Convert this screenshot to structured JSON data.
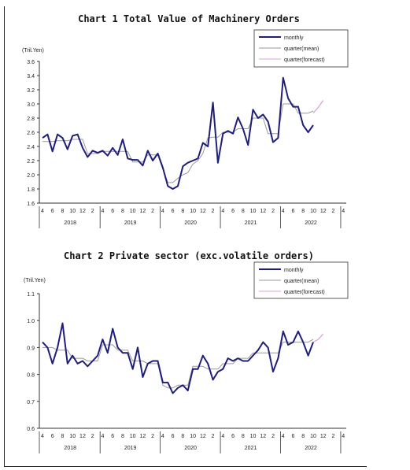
{
  "chart_data": [
    {
      "type": "line",
      "title": "Chart 1 Total Value of Machinery Orders",
      "ylabel": "(Tril.Yen)",
      "xlabel": "",
      "ylim": [
        1.6,
        3.6
      ],
      "yticks": [
        "1.6",
        "1.8",
        "2.0",
        "2.2",
        "2.4",
        "2.6",
        "2.8",
        "3.0",
        "3.2",
        "3.4",
        "3.6"
      ],
      "x_month_labels": [
        "4",
        "6",
        "8",
        "10",
        "12",
        "2"
      ],
      "years": [
        "2018",
        "2019",
        "2020",
        "2021",
        "2022"
      ],
      "legend_position": "top-right",
      "grid": false,
      "series": [
        {
          "name": "monthly",
          "color": "#1f1f7a",
          "start": "2018-04",
          "values": [
            2.52,
            2.57,
            2.33,
            2.57,
            2.52,
            2.36,
            2.55,
            2.57,
            2.38,
            2.25,
            2.34,
            2.31,
            2.34,
            2.27,
            2.38,
            2.28,
            2.5,
            2.23,
            2.21,
            2.21,
            2.13,
            2.34,
            2.2,
            2.3,
            2.1,
            1.84,
            1.8,
            1.84,
            2.12,
            2.17,
            2.2,
            2.23,
            2.45,
            2.4,
            3.02,
            2.17,
            2.58,
            2.62,
            2.58,
            2.81,
            2.65,
            2.42,
            2.92,
            2.8,
            2.85,
            2.75,
            2.46,
            2.52,
            3.37,
            3.08,
            2.96,
            2.96,
            2.7,
            2.6,
            2.7
          ]
        },
        {
          "name": "quarter(mean)",
          "color": "#999999",
          "start": "2018-04",
          "values": [
            2.47,
            2.47,
            2.47,
            2.48,
            2.48,
            2.48,
            2.5,
            2.5,
            2.5,
            2.3,
            2.3,
            2.3,
            2.33,
            2.33,
            2.33,
            2.33,
            2.33,
            2.33,
            2.18,
            2.18,
            2.18,
            2.28,
            2.28,
            2.28,
            2.08,
            1.89,
            1.89,
            1.95,
            2.0,
            2.03,
            2.15,
            2.2,
            2.3,
            2.52,
            2.53,
            2.53,
            2.6,
            2.6,
            2.6,
            2.65,
            2.65,
            2.65,
            2.8,
            2.8,
            2.8,
            2.58,
            2.58,
            2.58,
            3.0,
            3.0,
            3.0,
            2.87,
            2.87,
            2.87,
            2.9
          ]
        },
        {
          "name": "quarter(forecast)",
          "color": "#d8a0d8",
          "start": "2022-10",
          "values": [
            2.87,
            2.95,
            3.05
          ]
        }
      ]
    },
    {
      "type": "line",
      "title": "Chart 2 Private sector (exc.volatile orders)",
      "ylabel": "(Tril.Yen)",
      "xlabel": "",
      "ylim": [
        0.6,
        1.1
      ],
      "yticks": [
        "0.6",
        "0.7",
        "0.8",
        "0.9",
        "1.0",
        "1.1"
      ],
      "x_month_labels": [
        "4",
        "6",
        "8",
        "10",
        "12",
        "2"
      ],
      "years": [
        "2018",
        "2019",
        "2020",
        "2021",
        "2022"
      ],
      "legend_position": "top-right",
      "grid": false,
      "series": [
        {
          "name": "monthly",
          "color": "#1f1f7a",
          "start": "2018-04",
          "values": [
            0.92,
            0.9,
            0.84,
            0.9,
            0.99,
            0.84,
            0.87,
            0.84,
            0.85,
            0.83,
            0.85,
            0.87,
            0.93,
            0.88,
            0.97,
            0.9,
            0.88,
            0.88,
            0.82,
            0.9,
            0.79,
            0.84,
            0.85,
            0.85,
            0.77,
            0.77,
            0.73,
            0.75,
            0.76,
            0.74,
            0.82,
            0.82,
            0.87,
            0.84,
            0.78,
            0.81,
            0.82,
            0.86,
            0.85,
            0.86,
            0.85,
            0.85,
            0.87,
            0.89,
            0.92,
            0.9,
            0.81,
            0.86,
            0.96,
            0.91,
            0.92,
            0.96,
            0.92,
            0.87,
            0.92
          ]
        },
        {
          "name": "quarter(mean)",
          "color": "#999999",
          "start": "2018-04",
          "values": [
            0.9,
            0.9,
            0.9,
            0.89,
            0.89,
            0.89,
            0.86,
            0.86,
            0.86,
            0.85,
            0.85,
            0.85,
            0.91,
            0.91,
            0.91,
            0.89,
            0.89,
            0.89,
            0.85,
            0.85,
            0.85,
            0.84,
            0.84,
            0.84,
            0.76,
            0.75,
            0.75,
            0.76,
            0.76,
            0.76,
            0.83,
            0.83,
            0.83,
            0.82,
            0.82,
            0.82,
            0.84,
            0.84,
            0.84,
            0.86,
            0.86,
            0.86,
            0.88,
            0.88,
            0.88,
            0.88,
            0.88,
            0.88,
            0.92,
            0.92,
            0.92,
            0.92,
            0.92,
            0.92,
            0.93
          ]
        },
        {
          "name": "quarter(forecast)",
          "color": "#d8a0d8",
          "start": "2022-10",
          "values": [
            0.92,
            0.93,
            0.95
          ]
        }
      ]
    }
  ]
}
